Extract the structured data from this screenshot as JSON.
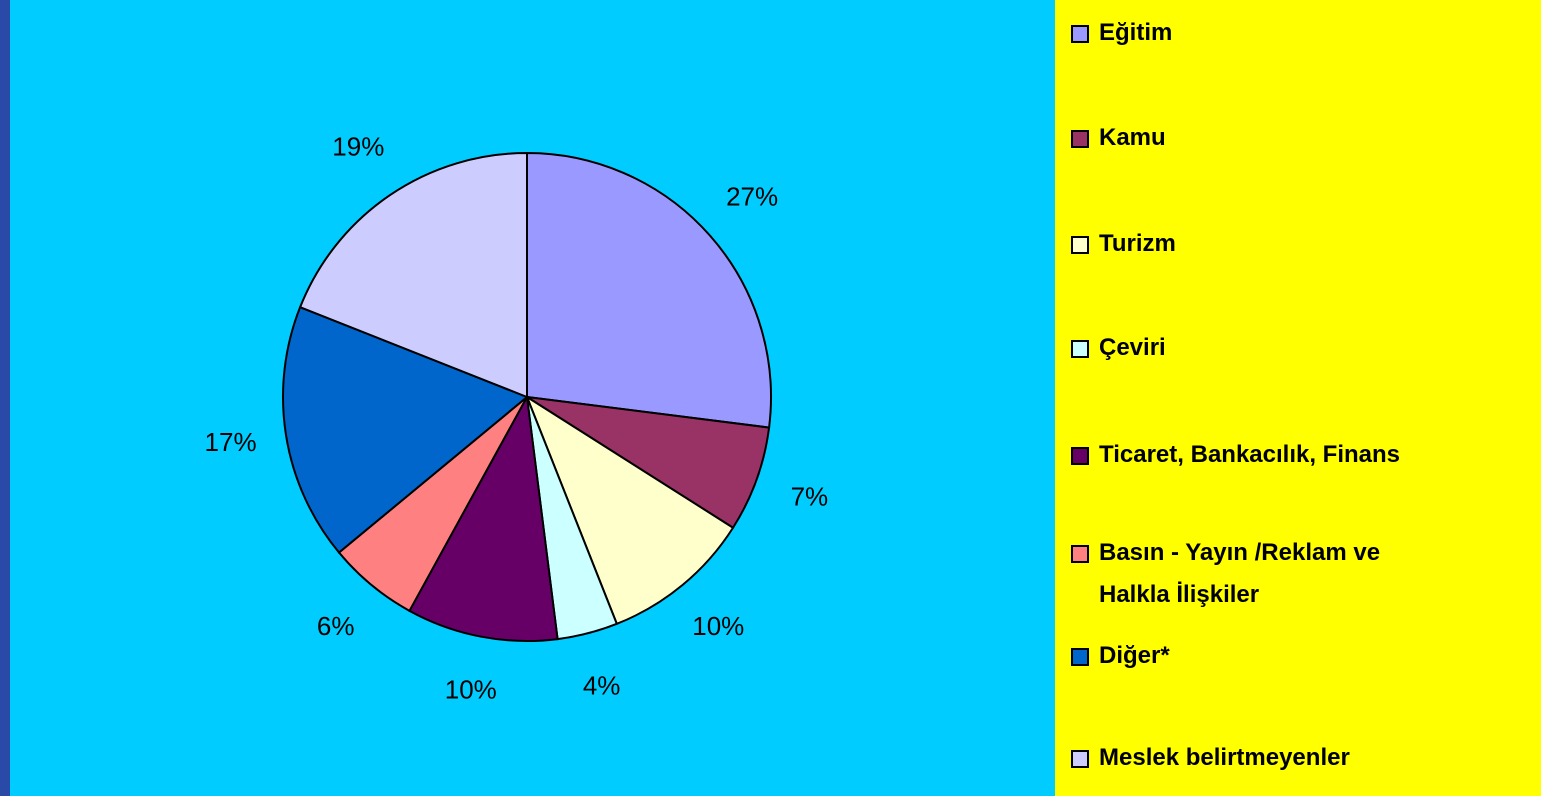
{
  "chart_data": {
    "type": "pie",
    "categories": [
      "Eğitim",
      "Kamu",
      "Turizm",
      "Çeviri",
      "Ticaret, Bankacılık, Finans",
      "Basın - Yayın /Reklam ve Halkla İlişkiler",
      "Diğer*",
      "Meslek belirtmeyenler"
    ],
    "values": [
      27,
      7,
      10,
      4,
      10,
      6,
      17,
      19
    ],
    "value_labels": [
      "27%",
      "7%",
      "10%",
      "4%",
      "10%",
      "6%",
      "17%",
      "19%"
    ],
    "colors": [
      "#9999ff",
      "#993366",
      "#ffffcc",
      "#ccffff",
      "#660066",
      "#ff8080",
      "#0066cc",
      "#ccccff"
    ],
    "legend": "right"
  }
}
